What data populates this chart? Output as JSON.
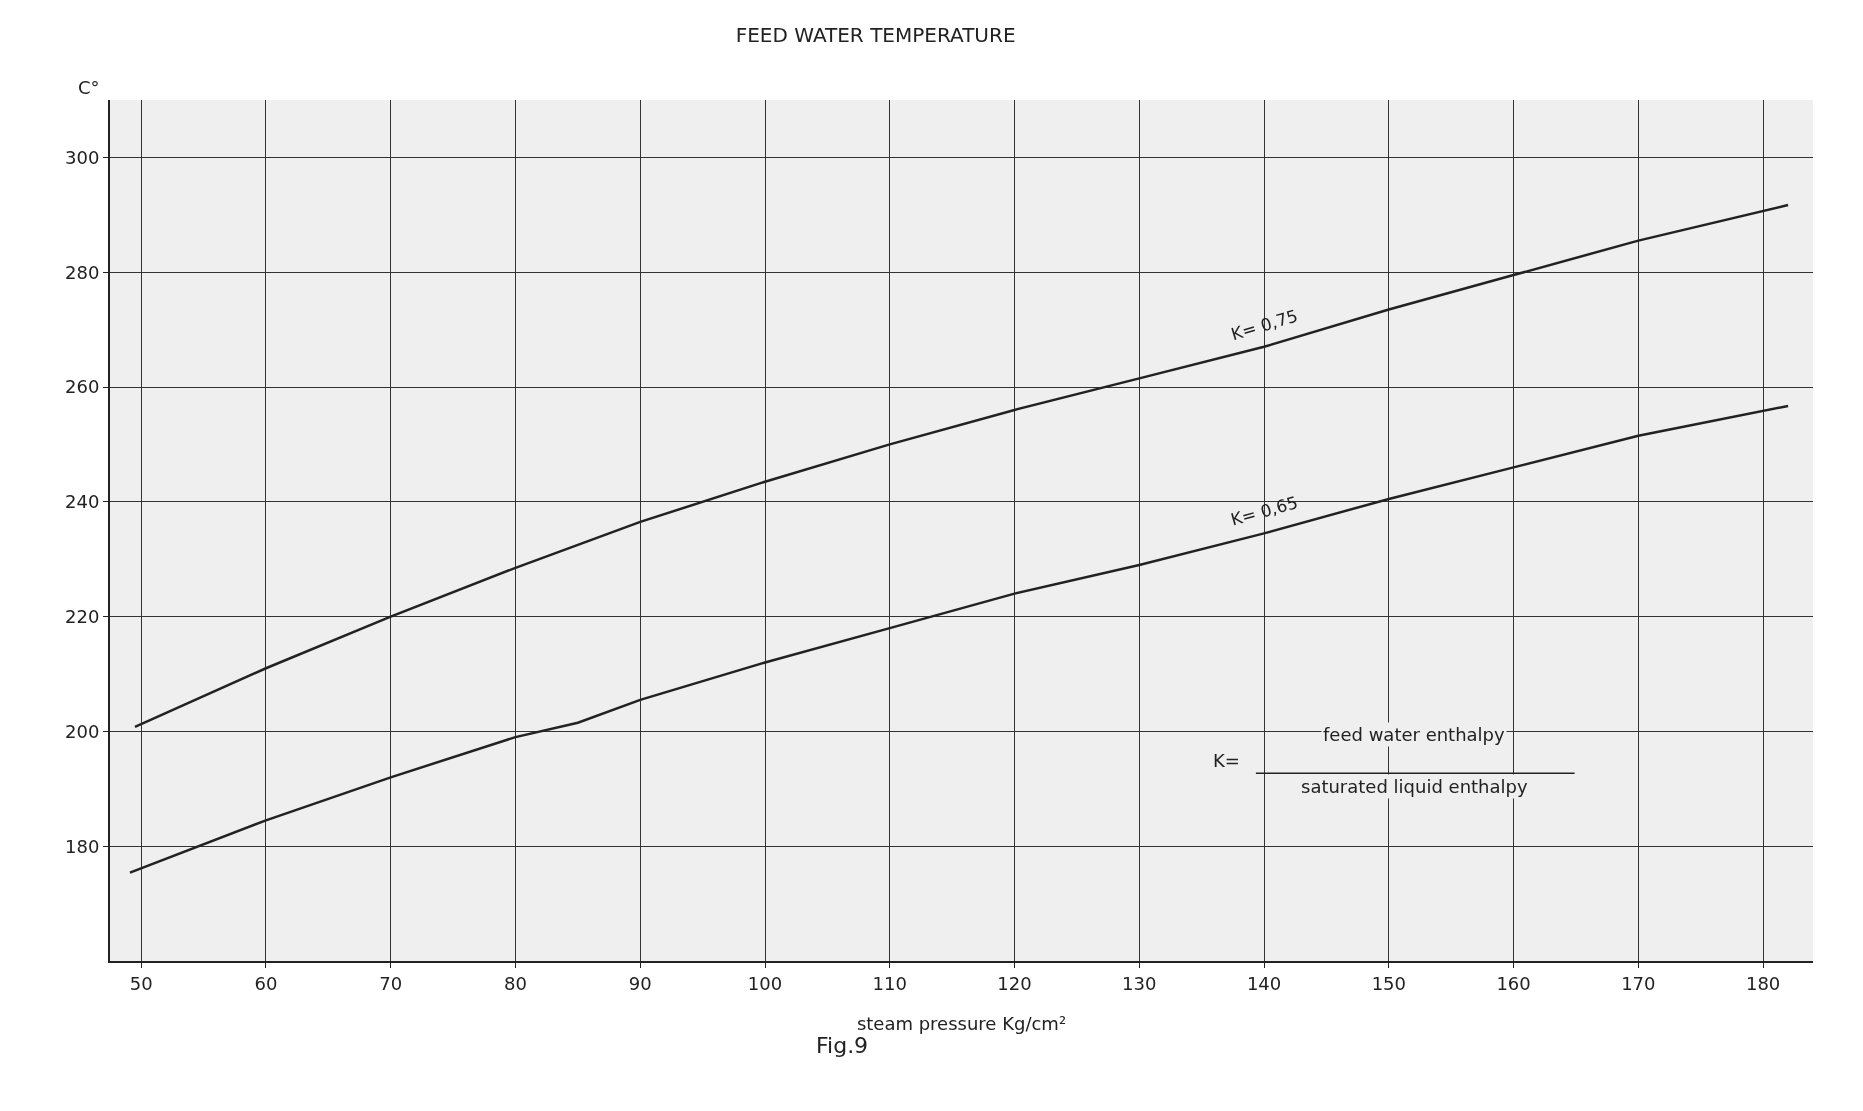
{
  "chart_data": {
    "type": "line",
    "title": "FEED WATER TEMPERATURE",
    "xlabel": "steam pressure Kg/cm²",
    "ylabel": "C°",
    "xlim": [
      47.5,
      184
    ],
    "ylim": [
      160,
      310
    ],
    "xticks": [
      50,
      60,
      70,
      80,
      90,
      100,
      110,
      120,
      130,
      140,
      150,
      160,
      170,
      180
    ],
    "yticks": [
      180,
      200,
      220,
      240,
      260,
      280,
      300
    ],
    "grid": true,
    "legend": false,
    "marker": "none",
    "line_style": "solid",
    "series": [
      {
        "name": "K= 0,75",
        "color": "#222222",
        "x": [
          49.5,
          60,
          70,
          80,
          90,
          100,
          110,
          120,
          130,
          140,
          150,
          160,
          170,
          182
        ],
        "values": [
          200.8,
          211,
          220,
          228.5,
          236.5,
          243.5,
          250,
          256,
          261.5,
          267,
          273.5,
          279.5,
          285.5,
          291.7
        ]
      },
      {
        "name": "K= 0,65",
        "color": "#222222",
        "x": [
          49.1,
          60,
          70,
          80,
          85,
          90,
          100,
          110,
          120,
          130,
          140,
          150,
          160,
          170,
          182
        ],
        "values": [
          175.4,
          184.5,
          192,
          199,
          201.5,
          205.5,
          212,
          218,
          224,
          229,
          234.5,
          240.5,
          246,
          251.5,
          256.7
        ]
      }
    ],
    "annotations": [
      "K=",
      "feed water enthalpy",
      "saturated liquid enthalpy",
      "Fig.9"
    ]
  }
}
